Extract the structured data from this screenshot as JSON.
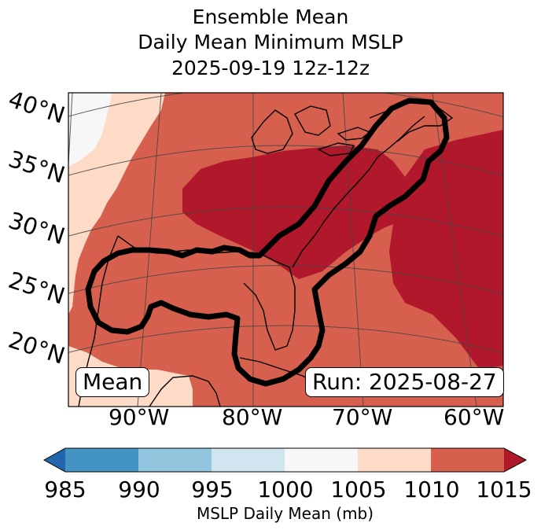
{
  "title": {
    "line1": "Ensemble Mean",
    "line2": "Daily Mean Minimum MSLP",
    "line3": "2025-09-19 12z-12z"
  },
  "map": {
    "corner_left": "Mean",
    "corner_right": "Run: 2025-08-27",
    "latitude_labels": [
      "40°N",
      "35°N",
      "30°N",
      "25°N",
      "20°N"
    ],
    "longitude_labels": [
      "90°W",
      "80°W",
      "70°W",
      "60°W"
    ],
    "fill_colors": {
      "lt1005": "#f7f7f7",
      "b1005_1010": "#fddbc7",
      "b1010_1015": "#d6604d",
      "gt1015": "#b2182b"
    },
    "contour_color": "#000000"
  },
  "colorbar": {
    "ticks": [
      "985",
      "990",
      "995",
      "1000",
      "1005",
      "1010",
      "1015"
    ],
    "label": "MSLP Daily Mean (mb)",
    "colors": [
      "#2166ac",
      "#4393c3",
      "#92c5de",
      "#d1e5f0",
      "#f7f7f7",
      "#fddbc7",
      "#d6604d",
      "#b2182b"
    ]
  }
}
